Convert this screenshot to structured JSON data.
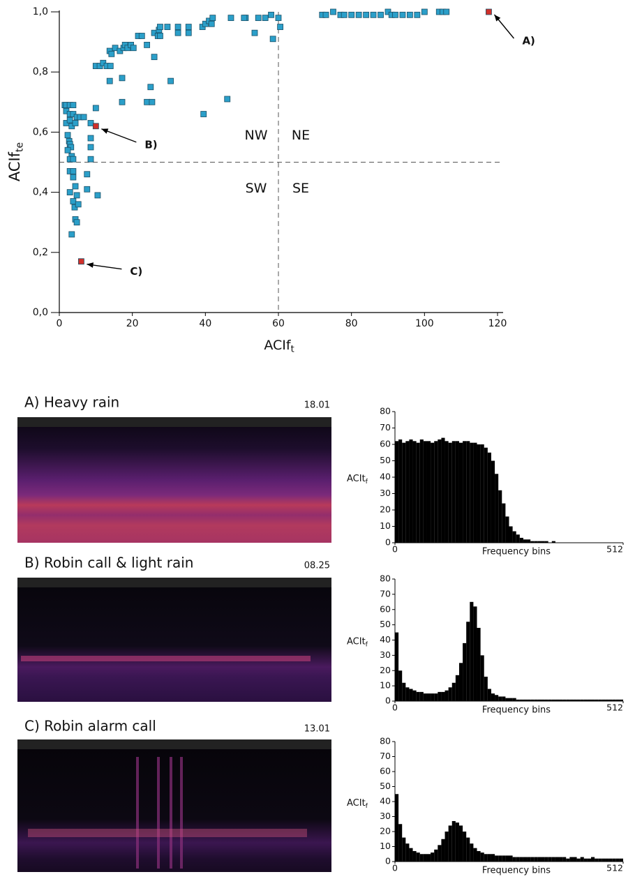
{
  "chart_data": [
    {
      "type": "scatter",
      "xlabel": "ACIf",
      "xlabel_subscript": "t",
      "ylabel": "ACIf",
      "ylabel_subscript": "te",
      "xlim": [
        0,
        120
      ],
      "ylim": [
        0,
        1
      ],
      "xticks": [
        0,
        20,
        40,
        60,
        80,
        100,
        120
      ],
      "yticks": [
        {
          "value": 0,
          "label": "0,0"
        },
        {
          "value": 0.2,
          "label": "0,2"
        },
        {
          "value": 0.4,
          "label": "0,4"
        },
        {
          "value": 0.6,
          "label": "0,6"
        },
        {
          "value": 0.8,
          "label": "0,8"
        },
        {
          "value": 1,
          "label": "1,0"
        }
      ],
      "quadrant_lines": {
        "x": 60,
        "y": 0.5
      },
      "quadrant_labels": [
        "NW",
        "NE",
        "SW",
        "SE"
      ],
      "series": [
        {
          "color": "#2b9fc9",
          "x": [
            1.5,
            1.9,
            2.9,
            3.8,
            1.9,
            2.9,
            3.8,
            4.8,
            5.7,
            6.7,
            1.9,
            2.9,
            3.4,
            4.4,
            2.3,
            2.7,
            2.9,
            3.2,
            2.3,
            3.4,
            2.9,
            3.8,
            2.9,
            3.8,
            3.8,
            4.4,
            2.9,
            4.8,
            3.8,
            4.2,
            5.2,
            4.4,
            4.8,
            3.4,
            7.6,
            7.6,
            8.6,
            8.6,
            8.6,
            8.6,
            10,
            10.5,
            10,
            11.1,
            12,
            13,
            14,
            13.8,
            14.3,
            15.3,
            16.6,
            17.6,
            18,
            18.7,
            19.6,
            20.3,
            21.6,
            22.6,
            24,
            26,
            27,
            27.3,
            27.6,
            27.6,
            29.6,
            32.5,
            32.5,
            35.4,
            35.4,
            39.2,
            40,
            41,
            42,
            41.7,
            47,
            51,
            50.6,
            53.5,
            54.5,
            56.4,
            58,
            58.5,
            60,
            60.5,
            13.8,
            17.2,
            17.2,
            25,
            24,
            25.4,
            30.5,
            39.5,
            46,
            26,
            72,
            73,
            75,
            77,
            78,
            80,
            82,
            84,
            86,
            88,
            90,
            91,
            92,
            94,
            96,
            98,
            100,
            104,
            105,
            106
          ],
          "y": [
            0.69,
            0.69,
            0.69,
            0.69,
            0.67,
            0.66,
            0.66,
            0.65,
            0.65,
            0.65,
            0.63,
            0.64,
            0.62,
            0.63,
            0.59,
            0.57,
            0.56,
            0.55,
            0.54,
            0.52,
            0.51,
            0.51,
            0.47,
            0.47,
            0.45,
            0.42,
            0.4,
            0.39,
            0.37,
            0.35,
            0.36,
            0.31,
            0.3,
            0.26,
            0.46,
            0.41,
            0.51,
            0.55,
            0.58,
            0.63,
            0.68,
            0.39,
            0.82,
            0.82,
            0.83,
            0.82,
            0.82,
            0.87,
            0.86,
            0.88,
            0.87,
            0.88,
            0.89,
            0.88,
            0.89,
            0.88,
            0.92,
            0.92,
            0.89,
            0.93,
            0.92,
            0.94,
            0.92,
            0.95,
            0.95,
            0.95,
            0.93,
            0.95,
            0.93,
            0.95,
            0.96,
            0.97,
            0.98,
            0.96,
            0.98,
            0.98,
            0.98,
            0.93,
            0.98,
            0.98,
            0.99,
            0.91,
            0.98,
            0.95,
            0.77,
            0.78,
            0.7,
            0.75,
            0.7,
            0.7,
            0.77,
            0.66,
            0.71,
            0.85,
            0.99,
            0.99,
            1.0,
            0.99,
            0.99,
            0.99,
            0.99,
            0.99,
            0.99,
            0.99,
            1.0,
            0.99,
            0.99,
            0.99,
            0.99,
            0.99,
            1.0,
            1.0,
            1.0,
            1.0
          ]
        },
        {
          "color": "#d0302a",
          "x": [
            117.6,
            10,
            6
          ],
          "y": [
            1.0,
            0.62,
            0.17
          ]
        }
      ],
      "annotations": [
        "A)",
        "B)",
        "C)"
      ]
    },
    {
      "type": "histogram",
      "title": "A) Heavy rain",
      "annotation": "18.01",
      "ylabel": "ACIt",
      "ylabel_subscript": "f",
      "xlabel": "Frequency bins",
      "xlim": [
        0,
        512
      ],
      "ylim": [
        0,
        80
      ],
      "xticks": [
        0,
        512
      ],
      "yticks": [
        0,
        10,
        20,
        30,
        40,
        50,
        60,
        70,
        80
      ],
      "color": "#000000",
      "bins": [
        0,
        8,
        16,
        24,
        32,
        40,
        48,
        56,
        64,
        72,
        80,
        88,
        96,
        104,
        112,
        120,
        128,
        136,
        144,
        152,
        160,
        168,
        176,
        184,
        192,
        200,
        208,
        216,
        224,
        232,
        240,
        248,
        256,
        264,
        272,
        280,
        288,
        296,
        304,
        312,
        320,
        328,
        336,
        344,
        352,
        360,
        368,
        376,
        384,
        392,
        400,
        408,
        416,
        424,
        432,
        440,
        448,
        456,
        464,
        472,
        480,
        488,
        496,
        504,
        512
      ],
      "values": [
        62,
        63,
        61,
        62,
        63,
        62,
        61,
        63,
        62,
        62,
        61,
        62,
        63,
        64,
        62,
        61,
        62,
        62,
        61,
        62,
        62,
        61,
        61,
        60,
        60,
        58,
        55,
        50,
        42,
        32,
        24,
        16,
        10,
        7,
        5,
        3,
        2,
        2,
        1,
        1,
        1,
        1,
        1,
        0,
        1,
        0,
        0,
        0,
        0,
        0,
        0,
        0,
        0,
        0,
        0,
        0,
        0,
        0,
        0,
        0,
        0,
        0,
        0,
        0
      ]
    },
    {
      "type": "histogram",
      "title": "B) Robin call & light rain",
      "annotation": "08.25",
      "ylabel": "ACIt",
      "ylabel_subscript": "f",
      "xlabel": "Frequency bins",
      "xlim": [
        0,
        512
      ],
      "ylim": [
        0,
        80
      ],
      "xticks": [
        0,
        512
      ],
      "yticks": [
        0,
        10,
        20,
        30,
        40,
        50,
        60,
        70,
        80
      ],
      "color": "#000000",
      "bins": [
        0,
        8,
        16,
        24,
        32,
        40,
        48,
        56,
        64,
        72,
        80,
        88,
        96,
        104,
        112,
        120,
        128,
        136,
        144,
        152,
        160,
        168,
        176,
        184,
        192,
        200,
        208,
        216,
        224,
        232,
        240,
        248,
        256,
        264,
        272,
        280,
        288,
        296,
        304,
        312,
        320,
        328,
        336,
        344,
        352,
        360,
        368,
        376,
        384,
        392,
        400,
        408,
        416,
        424,
        432,
        440,
        448,
        456,
        464,
        472,
        480,
        488,
        496,
        504,
        512
      ],
      "values": [
        45,
        20,
        12,
        9,
        8,
        7,
        6,
        6,
        5,
        5,
        5,
        5,
        6,
        6,
        7,
        9,
        12,
        17,
        25,
        38,
        52,
        65,
        62,
        48,
        30,
        16,
        8,
        5,
        4,
        3,
        3,
        2,
        2,
        2,
        1,
        1,
        1,
        1,
        1,
        1,
        1,
        1,
        1,
        1,
        1,
        1,
        1,
        1,
        1,
        1,
        1,
        1,
        1,
        1,
        1,
        1,
        1,
        1,
        1,
        1,
        1,
        1,
        1,
        1
      ]
    },
    {
      "type": "histogram",
      "title": "C)  Robin  alarm call",
      "annotation": "13.01",
      "ylabel": "ACIt",
      "ylabel_subscript": "f",
      "xlabel": "Frequency bins",
      "xlim": [
        0,
        512
      ],
      "ylim": [
        0,
        80
      ],
      "xticks": [
        0,
        512
      ],
      "yticks": [
        0,
        10,
        20,
        30,
        40,
        50,
        60,
        70,
        80
      ],
      "color": "#000000",
      "bins": [
        0,
        8,
        16,
        24,
        32,
        40,
        48,
        56,
        64,
        72,
        80,
        88,
        96,
        104,
        112,
        120,
        128,
        136,
        144,
        152,
        160,
        168,
        176,
        184,
        192,
        200,
        208,
        216,
        224,
        232,
        240,
        248,
        256,
        264,
        272,
        280,
        288,
        296,
        304,
        312,
        320,
        328,
        336,
        344,
        352,
        360,
        368,
        376,
        384,
        392,
        400,
        408,
        416,
        424,
        432,
        440,
        448,
        456,
        464,
        472,
        480,
        488,
        496,
        504,
        512
      ],
      "values": [
        45,
        25,
        16,
        12,
        9,
        7,
        6,
        5,
        5,
        5,
        6,
        8,
        11,
        15,
        20,
        24,
        27,
        26,
        24,
        20,
        16,
        12,
        9,
        7,
        6,
        5,
        5,
        5,
        4,
        4,
        4,
        4,
        4,
        3,
        3,
        3,
        3,
        3,
        3,
        3,
        3,
        3,
        3,
        3,
        3,
        3,
        3,
        3,
        2,
        3,
        3,
        2,
        3,
        2,
        2,
        3,
        2,
        2,
        2,
        2,
        2,
        2,
        2,
        2
      ]
    }
  ]
}
